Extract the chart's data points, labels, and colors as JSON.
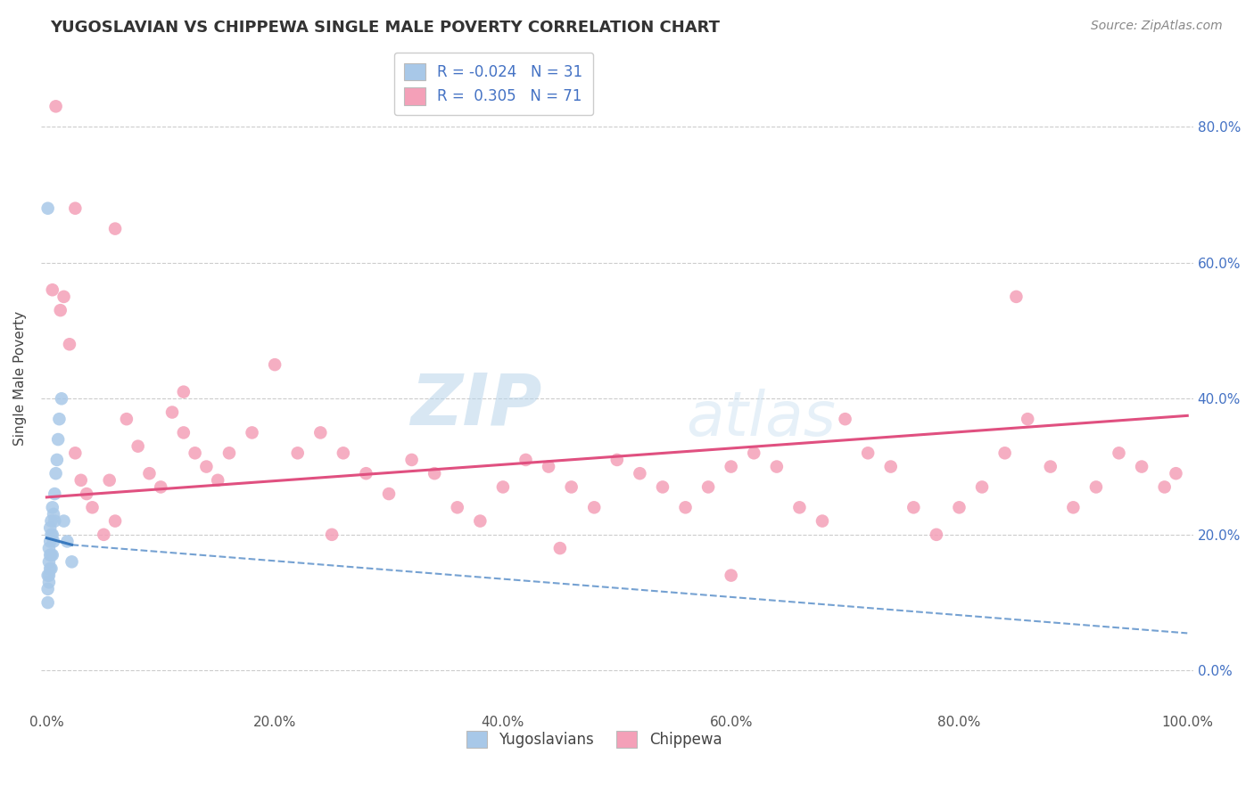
{
  "title": "YUGOSLAVIAN VS CHIPPEWA SINGLE MALE POVERTY CORRELATION CHART",
  "source": "Source: ZipAtlas.com",
  "ylabel": "Single Male Poverty",
  "r_yugo": -0.024,
  "n_yugo": 31,
  "r_chippewa": 0.305,
  "n_chippewa": 71,
  "yugo_color": "#a8c8e8",
  "chippewa_color": "#f4a0b8",
  "yugo_line_color": "#3a7abf",
  "chippewa_line_color": "#e05080",
  "background_color": "#ffffff",
  "grid_color": "#cccccc",
  "watermark_zip": "ZIP",
  "watermark_atlas": "atlas",
  "ytick_labels": [
    "0.0%",
    "20.0%",
    "40.0%",
    "60.0%",
    "80.0%"
  ],
  "ytick_values": [
    0.0,
    0.2,
    0.4,
    0.6,
    0.8
  ],
  "xlim": [
    -0.005,
    1.005
  ],
  "ylim": [
    -0.06,
    0.92
  ],
  "yugo_x": [
    0.001,
    0.001,
    0.001,
    0.002,
    0.002,
    0.002,
    0.002,
    0.003,
    0.003,
    0.003,
    0.003,
    0.004,
    0.004,
    0.004,
    0.004,
    0.005,
    0.005,
    0.005,
    0.006,
    0.006,
    0.007,
    0.007,
    0.008,
    0.009,
    0.01,
    0.011,
    0.013,
    0.015,
    0.018,
    0.022,
    0.001
  ],
  "yugo_y": [
    0.14,
    0.12,
    0.1,
    0.18,
    0.16,
    0.14,
    0.13,
    0.21,
    0.19,
    0.17,
    0.15,
    0.22,
    0.2,
    0.17,
    0.15,
    0.24,
    0.2,
    0.17,
    0.23,
    0.19,
    0.26,
    0.22,
    0.29,
    0.31,
    0.34,
    0.37,
    0.4,
    0.22,
    0.19,
    0.16,
    0.68
  ],
  "chippewa_x": [
    0.005,
    0.008,
    0.012,
    0.015,
    0.02,
    0.025,
    0.03,
    0.035,
    0.04,
    0.05,
    0.055,
    0.06,
    0.07,
    0.08,
    0.09,
    0.1,
    0.11,
    0.12,
    0.13,
    0.14,
    0.15,
    0.16,
    0.18,
    0.2,
    0.22,
    0.24,
    0.26,
    0.28,
    0.3,
    0.32,
    0.34,
    0.36,
    0.38,
    0.4,
    0.42,
    0.44,
    0.46,
    0.48,
    0.5,
    0.52,
    0.54,
    0.56,
    0.58,
    0.6,
    0.62,
    0.64,
    0.66,
    0.68,
    0.7,
    0.72,
    0.74,
    0.76,
    0.78,
    0.8,
    0.82,
    0.84,
    0.86,
    0.88,
    0.9,
    0.92,
    0.94,
    0.96,
    0.98,
    0.99,
    0.025,
    0.06,
    0.12,
    0.25,
    0.45,
    0.6,
    0.85
  ],
  "chippewa_y": [
    0.56,
    0.83,
    0.53,
    0.55,
    0.48,
    0.32,
    0.28,
    0.26,
    0.24,
    0.2,
    0.28,
    0.22,
    0.37,
    0.33,
    0.29,
    0.27,
    0.38,
    0.35,
    0.32,
    0.3,
    0.28,
    0.32,
    0.35,
    0.45,
    0.32,
    0.35,
    0.32,
    0.29,
    0.26,
    0.31,
    0.29,
    0.24,
    0.22,
    0.27,
    0.31,
    0.3,
    0.27,
    0.24,
    0.31,
    0.29,
    0.27,
    0.24,
    0.27,
    0.3,
    0.32,
    0.3,
    0.24,
    0.22,
    0.37,
    0.32,
    0.3,
    0.24,
    0.2,
    0.24,
    0.27,
    0.32,
    0.37,
    0.3,
    0.24,
    0.27,
    0.32,
    0.3,
    0.27,
    0.29,
    0.68,
    0.65,
    0.41,
    0.2,
    0.18,
    0.14,
    0.55
  ],
  "title_fontsize": 13,
  "axis_label_fontsize": 11,
  "tick_fontsize": 11,
  "legend_fontsize": 12,
  "source_fontsize": 10,
  "chippewa_trend_x0": 0.0,
  "chippewa_trend_x1": 1.0,
  "chippewa_trend_y0": 0.255,
  "chippewa_trend_y1": 0.375,
  "yugo_trend_x0": 0.0,
  "yugo_trend_x1": 0.022,
  "yugo_trend_solid_y0": 0.195,
  "yugo_trend_solid_y1": 0.185,
  "yugo_trend_dash_x0": 0.022,
  "yugo_trend_dash_x1": 1.0,
  "yugo_trend_dash_y0": 0.185,
  "yugo_trend_dash_y1": 0.055
}
